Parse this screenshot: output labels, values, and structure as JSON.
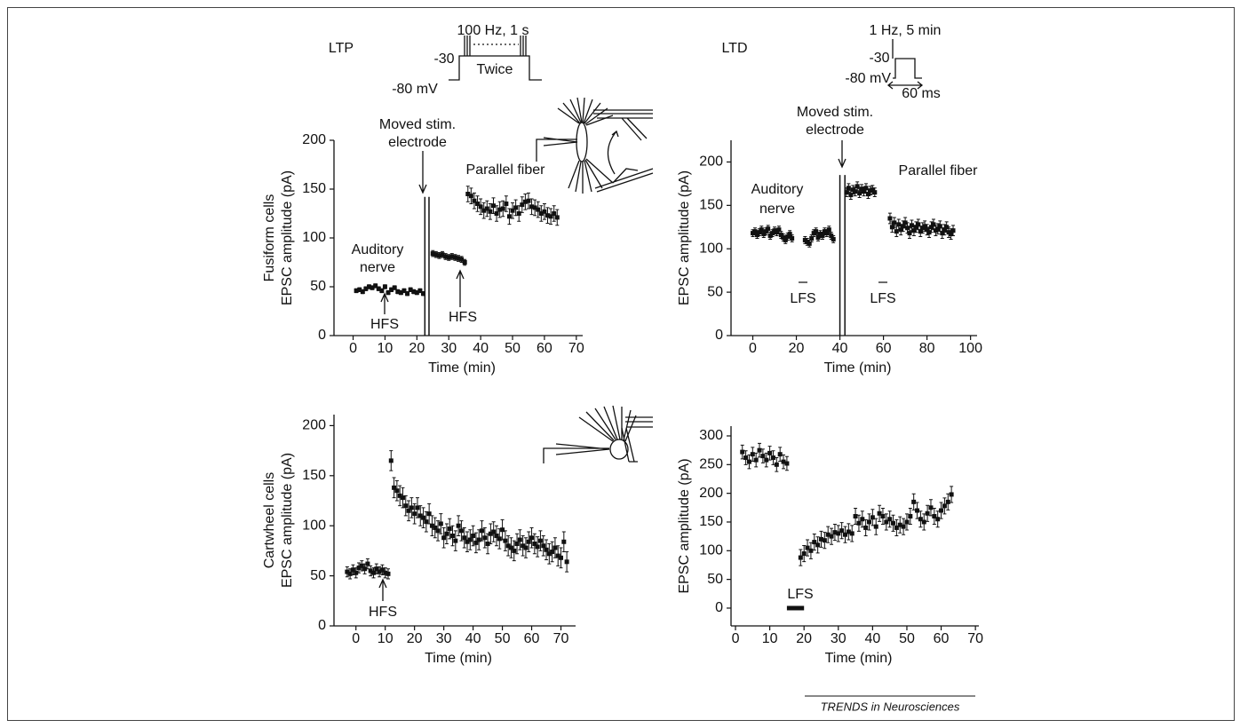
{
  "figure": {
    "ltp": "LTP",
    "ltd": "LTD",
    "ltp_protocol": [
      "100 Hz, 1 s",
      "-30",
      "Twice",
      "-80 mV"
    ],
    "ltd_protocol": [
      "1 Hz, 5 min",
      "-30",
      "-80 mV",
      "60 ms"
    ],
    "credit": "TRENDS in Neurosciences"
  },
  "chart_data": [
    {
      "type": "scatter",
      "row_label": "Fusiform cells",
      "ylabel": "EPSC amplitude (pA)",
      "xlabel": "Time (min)",
      "xlim": [
        -6,
        72
      ],
      "xticks": [
        0,
        10,
        20,
        30,
        40,
        50,
        60,
        70
      ],
      "ylim": [
        0,
        200
      ],
      "yticks": [
        0,
        50,
        100,
        150,
        200
      ],
      "annotations": [
        "Moved stim.",
        "electrode",
        "Parallel fiber",
        "Auditory",
        "nerve",
        "HFS",
        "HFS"
      ],
      "artifacts": [
        {
          "x": 22.5,
          "y": 142
        },
        {
          "x": 23.8,
          "y": 142
        }
      ],
      "series": [
        {
          "color": "#111111",
          "error": 2,
          "x": [
            1,
            2,
            3,
            4,
            5,
            6,
            7,
            8,
            9,
            10,
            11,
            12,
            13,
            14,
            15,
            16,
            17,
            18,
            19,
            20,
            21,
            22
          ],
          "values": [
            46,
            47,
            45,
            48,
            50,
            49,
            51,
            48,
            46,
            50,
            44,
            47,
            49,
            45,
            44,
            46,
            43,
            47,
            45,
            44,
            46,
            43
          ]
        },
        {
          "color": "#111111",
          "error": 3,
          "x": [
            25,
            26,
            27,
            28,
            29,
            30,
            31,
            32,
            33,
            34,
            35
          ],
          "values": [
            84,
            83,
            82,
            83,
            81,
            80,
            81,
            80,
            79,
            78,
            75
          ]
        },
        {
          "color": "#111111",
          "error": 8,
          "x": [
            36,
            37,
            38,
            39,
            40,
            41,
            42,
            43,
            44,
            45,
            46,
            47,
            48,
            49,
            50,
            51,
            52,
            53,
            54,
            55,
            56,
            57,
            58,
            59,
            60,
            61,
            62,
            63,
            64
          ],
          "values": [
            145,
            143,
            138,
            135,
            132,
            128,
            130,
            127,
            133,
            125,
            129,
            130,
            135,
            122,
            128,
            131,
            125,
            134,
            137,
            138,
            132,
            131,
            129,
            125,
            127,
            123,
            122,
            125,
            121
          ]
        }
      ]
    },
    {
      "type": "scatter",
      "ylabel": "EPSC amplitude (pA)",
      "xlabel": "Time (min)",
      "xlim": [
        -10,
        103
      ],
      "xticks": [
        0,
        20,
        40,
        60,
        80,
        100
      ],
      "ylim": [
        0,
        225
      ],
      "yticks": [
        0,
        50,
        100,
        150,
        200
      ],
      "annotations": [
        "Moved stim.",
        "electrode",
        "Parallel fiber",
        "Auditory",
        "nerve",
        "LFS",
        "LFS"
      ],
      "artifacts": [
        {
          "x": 40,
          "y": 185
        },
        {
          "x": 42.3,
          "y": 185
        }
      ],
      "series": [
        {
          "color": "#111111",
          "error": 4,
          "x": [
            0,
            1,
            2,
            3,
            4,
            5,
            6,
            7,
            8,
            9,
            10,
            11,
            12,
            13,
            14,
            15,
            16,
            17,
            18
          ],
          "values": [
            118,
            120,
            116,
            119,
            122,
            117,
            120,
            123,
            115,
            118,
            121,
            119,
            122,
            116,
            113,
            110,
            114,
            117,
            112
          ]
        },
        {
          "color": "#111111",
          "error": 4,
          "x": [
            24,
            25,
            26,
            27,
            28,
            29,
            30,
            31,
            32,
            33,
            34,
            35,
            36,
            37
          ],
          "values": [
            110,
            108,
            106,
            112,
            118,
            120,
            113,
            117,
            115,
            120,
            118,
            122,
            115,
            111
          ]
        },
        {
          "color": "#111111",
          "error": 5,
          "x": [
            43,
            44,
            45,
            46,
            47,
            48,
            49,
            50,
            51,
            52,
            53,
            54,
            55,
            56
          ],
          "values": [
            165,
            170,
            162,
            168,
            166,
            172,
            164,
            169,
            166,
            170,
            163,
            167,
            168,
            165
          ]
        },
        {
          "color": "#111111",
          "error": 6,
          "x": [
            63,
            64,
            65,
            66,
            67,
            68,
            69,
            70,
            71,
            72,
            73,
            74,
            75,
            76,
            77,
            78,
            79,
            80,
            81,
            82,
            83,
            84,
            85,
            86,
            87,
            88,
            89,
            90,
            91,
            92
          ],
          "values": [
            135,
            125,
            130,
            120,
            128,
            122,
            126,
            130,
            124,
            118,
            127,
            121,
            125,
            128,
            120,
            124,
            126,
            122,
            119,
            125,
            128,
            121,
            123,
            126,
            118,
            122,
            125,
            119,
            117,
            121
          ]
        }
      ]
    },
    {
      "type": "scatter",
      "row_label": "Cartwheel cells",
      "ylabel": "EPSC amplitude (pA)",
      "xlabel": "Time (min)",
      "xlim": [
        -7.5,
        75
      ],
      "xticks": [
        0,
        10,
        20,
        30,
        40,
        50,
        60,
        70
      ],
      "ylim": [
        0,
        211
      ],
      "yticks": [
        0,
        50,
        100,
        150,
        200
      ],
      "annotations": [
        "HFS"
      ],
      "series": [
        {
          "color": "#111111",
          "error": 5,
          "x": [
            -3,
            -2,
            -1,
            0,
            1,
            2,
            3,
            4,
            5,
            6,
            7,
            8,
            9,
            10,
            11
          ],
          "values": [
            54,
            52,
            56,
            53,
            58,
            60,
            57,
            62,
            55,
            53,
            57,
            54,
            56,
            53,
            52
          ]
        },
        {
          "color": "#111111",
          "error": 10,
          "x": [
            12,
            13,
            14,
            15,
            16,
            17,
            18,
            19,
            20,
            21,
            22,
            23,
            24,
            25,
            26,
            27,
            28,
            29,
            30,
            31,
            32,
            33,
            34,
            35,
            36,
            37,
            38,
            39,
            40,
            41,
            42,
            43,
            44,
            45,
            46,
            47,
            48,
            49,
            50,
            51,
            52,
            53,
            54,
            55,
            56,
            57,
            58,
            59,
            60,
            61,
            62,
            63,
            64,
            65,
            66,
            67,
            68,
            69,
            70,
            71,
            72
          ],
          "values": [
            165,
            138,
            135,
            130,
            128,
            120,
            115,
            118,
            112,
            118,
            110,
            108,
            104,
            112,
            100,
            98,
            95,
            102,
            88,
            92,
            97,
            90,
            85,
            100,
            95,
            88,
            84,
            86,
            90,
            83,
            86,
            95,
            88,
            82,
            92,
            94,
            90,
            87,
            96,
            85,
            80,
            78,
            75,
            82,
            86,
            80,
            78,
            84,
            88,
            82,
            79,
            85,
            80,
            76,
            72,
            74,
            78,
            70,
            68,
            84,
            64
          ]
        }
      ]
    },
    {
      "type": "scatter",
      "ylabel": "EPSC amplitude (pA)",
      "xlabel": "Time (min)",
      "xlim": [
        -1.3,
        71
      ],
      "xticks": [
        0,
        10,
        20,
        30,
        40,
        50,
        60,
        70
      ],
      "ylim": [
        -31,
        317
      ],
      "yticks": [
        0,
        50,
        100,
        150,
        200,
        250,
        300
      ],
      "annotations": [
        "LFS"
      ],
      "lfs_period": [
        15,
        20
      ],
      "series": [
        {
          "color": "#111111",
          "error": 12,
          "x": [
            2,
            3,
            4,
            5,
            6,
            7,
            8,
            9,
            10,
            11,
            12,
            13,
            14,
            15
          ],
          "values": [
            272,
            262,
            255,
            268,
            258,
            275,
            265,
            258,
            270,
            262,
            250,
            268,
            255,
            252
          ]
        },
        {
          "color": "#111111",
          "error": 14,
          "x": [
            19,
            20,
            21,
            22,
            23,
            24,
            25,
            26,
            27,
            28,
            29,
            30,
            31,
            32,
            33,
            34,
            35,
            36,
            37,
            38,
            39,
            40,
            41,
            42,
            43,
            44,
            45,
            46,
            47,
            48,
            49,
            50,
            51,
            52,
            53,
            54,
            55,
            56,
            57,
            58,
            59,
            60,
            61,
            62,
            63
          ],
          "values": [
            88,
            95,
            105,
            100,
            115,
            110,
            120,
            118,
            128,
            125,
            132,
            130,
            135,
            128,
            133,
            130,
            160,
            148,
            155,
            140,
            150,
            158,
            142,
            165,
            160,
            150,
            155,
            148,
            140,
            145,
            142,
            150,
            160,
            185,
            170,
            155,
            150,
            165,
            175,
            160,
            155,
            170,
            178,
            185,
            198
          ]
        }
      ]
    }
  ]
}
